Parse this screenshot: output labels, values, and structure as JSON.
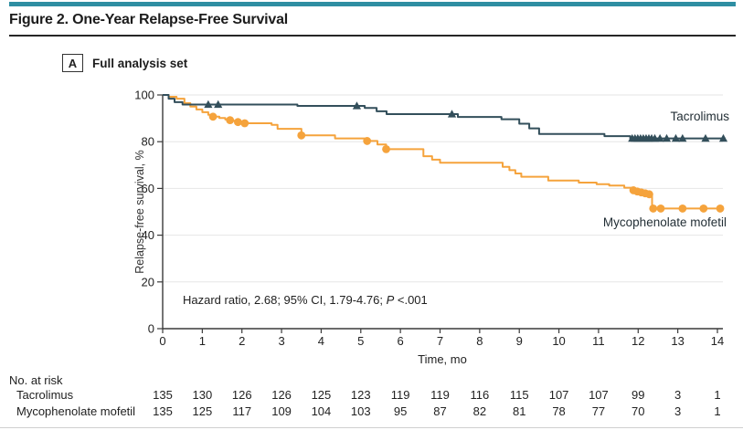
{
  "figure": {
    "title": "Figure 2. One-Year Relapse-Free Survival",
    "panel_label": "A",
    "panel_title": "Full analysis set"
  },
  "annotation": {
    "prefix": "Hazard ratio, 2.68; 95% CI, 1.79-4.76; ",
    "p_symbol": "P",
    "p_value": " <.001"
  },
  "colors": {
    "accent_bar": "#2E8EA2",
    "axis": "#3a3a3a",
    "grid": "#e6e6e6",
    "tick_text": "#222222",
    "tacrolimus": "#334F5B",
    "mycophenolate": "#F5A33C"
  },
  "chart_data": {
    "type": "line",
    "subtype": "kaplan-meier-step",
    "title": "Full analysis set",
    "xlabel": "Time, mo",
    "ylabel": "Relapse-free survival, %",
    "xlim": [
      0,
      14
    ],
    "ylim": [
      0,
      100
    ],
    "xticks": [
      0,
      1,
      2,
      3,
      4,
      5,
      6,
      7,
      8,
      9,
      10,
      11,
      12,
      13,
      14
    ],
    "yticks": [
      0,
      20,
      40,
      60,
      80,
      100
    ],
    "grid": "horizontal",
    "legend_position": "labels-inline-right",
    "annotation_text": "Hazard ratio, 2.68; 95% CI, 1.79-4.76; P <.001",
    "series": [
      {
        "name": "Tacrolimus",
        "color": "#334F5B",
        "marker": "triangle",
        "steps": [
          [
            0,
            100
          ],
          [
            0.15,
            98.4
          ],
          [
            0.3,
            96.9
          ],
          [
            0.5,
            95.9
          ],
          [
            3.4,
            95.3
          ],
          [
            5.1,
            94.4
          ],
          [
            5.4,
            93.0
          ],
          [
            5.65,
            91.8
          ],
          [
            7.45,
            90.6
          ],
          [
            8.55,
            89.6
          ],
          [
            9.0,
            87.7
          ],
          [
            9.25,
            85.7
          ],
          [
            9.5,
            83.3
          ],
          [
            11.15,
            82.4
          ],
          [
            11.8,
            81.4
          ],
          [
            14.2,
            81.4
          ]
        ],
        "censor_marks": [
          [
            1.15,
            95.9
          ],
          [
            1.4,
            95.9
          ],
          [
            4.9,
            95.3
          ],
          [
            7.3,
            91.8
          ],
          [
            11.85,
            81.4
          ],
          [
            11.92,
            81.4
          ],
          [
            11.99,
            81.4
          ],
          [
            12.06,
            81.4
          ],
          [
            12.13,
            81.4
          ],
          [
            12.2,
            81.4
          ],
          [
            12.27,
            81.4
          ],
          [
            12.34,
            81.4
          ],
          [
            12.42,
            81.4
          ],
          [
            12.55,
            81.4
          ],
          [
            12.72,
            81.4
          ],
          [
            12.95,
            81.4
          ],
          [
            13.12,
            81.4
          ],
          [
            13.7,
            81.4
          ],
          [
            14.15,
            81.4
          ]
        ]
      },
      {
        "name": "Mycophenolate mofetil",
        "color": "#F5A33C",
        "marker": "circle",
        "steps": [
          [
            0,
            100
          ],
          [
            0.15,
            99.2
          ],
          [
            0.35,
            98.4
          ],
          [
            0.55,
            96.5
          ],
          [
            0.7,
            95.0
          ],
          [
            0.85,
            93.8
          ],
          [
            1.0,
            92.6
          ],
          [
            1.15,
            91.5
          ],
          [
            1.27,
            90.7
          ],
          [
            1.43,
            90.1
          ],
          [
            1.58,
            89.5
          ],
          [
            1.75,
            89.0
          ],
          [
            1.95,
            88.3
          ],
          [
            2.1,
            87.9
          ],
          [
            2.75,
            87.2
          ],
          [
            2.9,
            85.5
          ],
          [
            3.5,
            82.7
          ],
          [
            4.35,
            81.4
          ],
          [
            5.16,
            80.3
          ],
          [
            5.42,
            78.8
          ],
          [
            5.64,
            76.8
          ],
          [
            6.58,
            73.8
          ],
          [
            6.8,
            72.3
          ],
          [
            7.0,
            71.0
          ],
          [
            8.58,
            69.2
          ],
          [
            8.75,
            67.8
          ],
          [
            8.9,
            66.4
          ],
          [
            9.05,
            65.0
          ],
          [
            9.73,
            63.4
          ],
          [
            10.5,
            62.5
          ],
          [
            10.95,
            61.8
          ],
          [
            11.27,
            61.2
          ],
          [
            11.65,
            60.3
          ],
          [
            11.85,
            59.4
          ],
          [
            12.0,
            58.7
          ],
          [
            12.15,
            58.0
          ],
          [
            12.28,
            57.4
          ],
          [
            12.35,
            51.4
          ],
          [
            14.1,
            51.4
          ]
        ],
        "censor_marks": [
          [
            1.27,
            90.7
          ],
          [
            1.7,
            89.2
          ],
          [
            1.9,
            88.4
          ],
          [
            2.07,
            87.9
          ],
          [
            3.5,
            82.7
          ],
          [
            5.16,
            80.3
          ],
          [
            5.64,
            76.8
          ],
          [
            11.88,
            59.2
          ],
          [
            11.98,
            58.7
          ],
          [
            12.08,
            58.3
          ],
          [
            12.18,
            57.9
          ],
          [
            12.28,
            57.5
          ],
          [
            12.38,
            51.4
          ],
          [
            12.57,
            51.4
          ],
          [
            13.12,
            51.4
          ],
          [
            13.65,
            51.4
          ],
          [
            14.07,
            51.4
          ]
        ]
      }
    ],
    "no_at_risk": {
      "label": "No. at risk",
      "times": [
        0,
        1,
        2,
        3,
        4,
        5,
        6,
        7,
        8,
        9,
        10,
        11,
        12,
        13,
        14
      ],
      "rows": [
        {
          "name": "Tacrolimus",
          "values": [
            135,
            130,
            126,
            126,
            125,
            123,
            119,
            119,
            116,
            115,
            107,
            107,
            99,
            3,
            1
          ]
        },
        {
          "name": "Mycophenolate mofetil",
          "values": [
            135,
            125,
            117,
            109,
            104,
            103,
            95,
            87,
            82,
            81,
            78,
            77,
            70,
            3,
            1
          ]
        }
      ]
    }
  }
}
